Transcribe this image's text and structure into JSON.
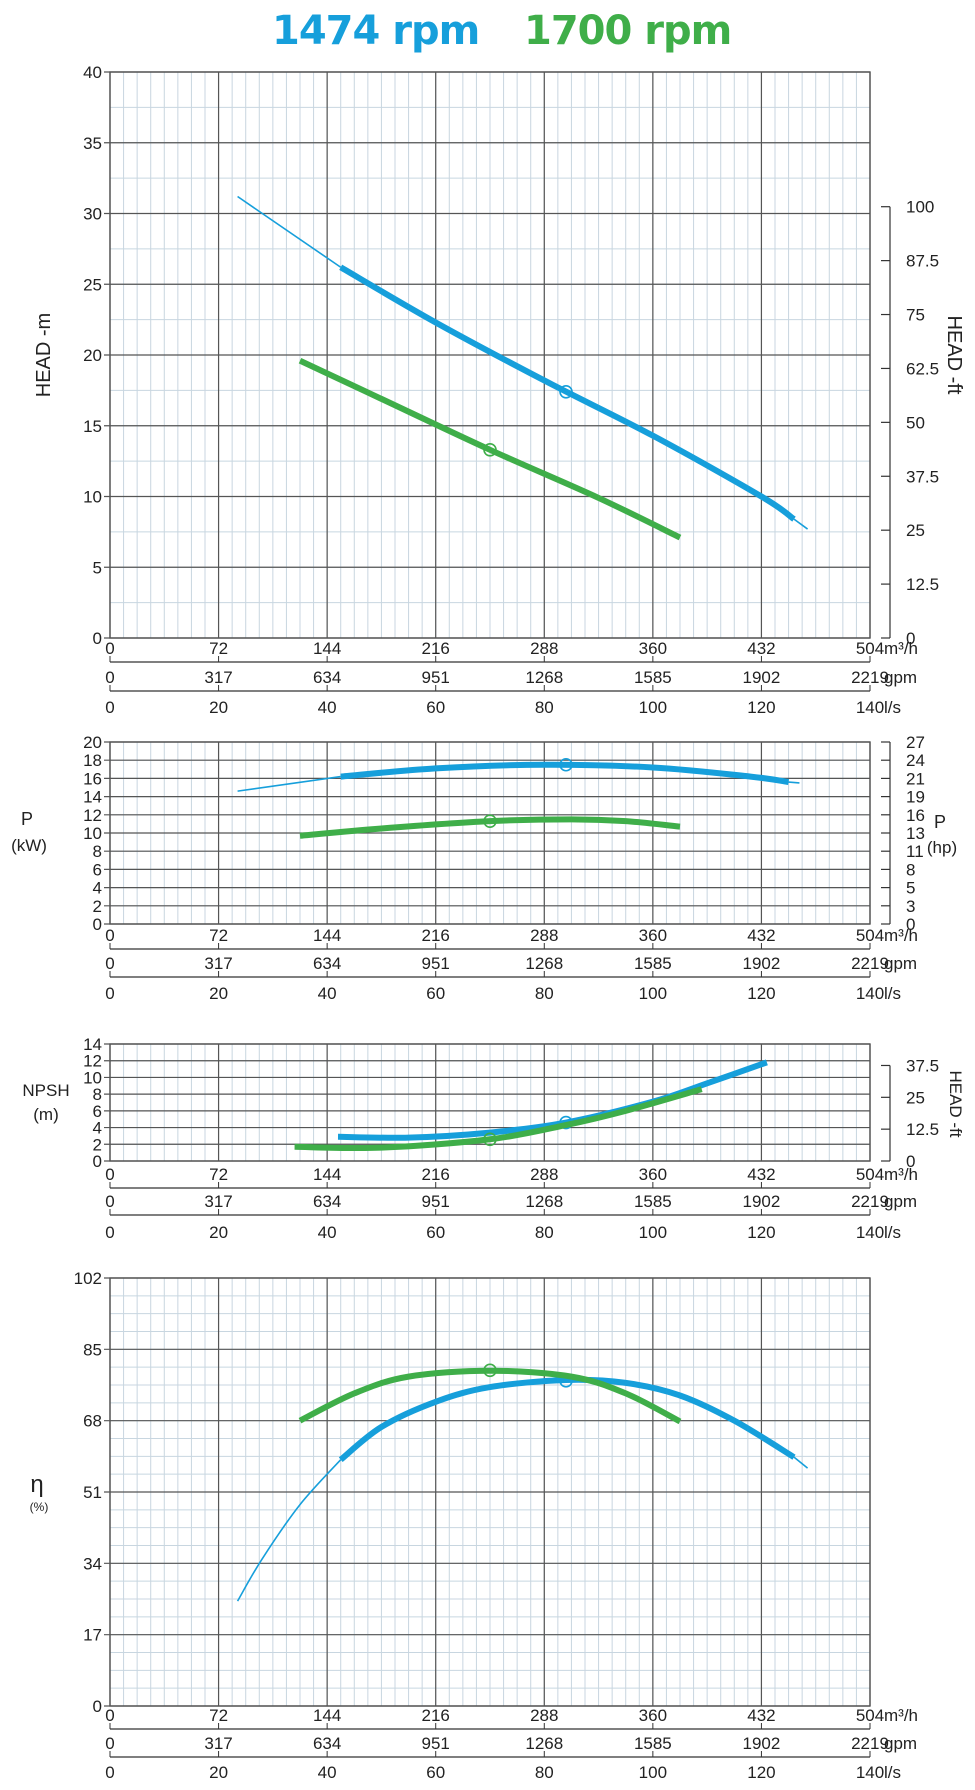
{
  "title": {
    "series_a_label": "1474 rpm",
    "series_b_label": "1700 rpm"
  },
  "colors": {
    "series_a": "#169fdb",
    "series_b": "#3fae49",
    "grid_major": "#555555",
    "grid_minor": "#c8d6e0"
  },
  "flow_axes": {
    "m3h": {
      "unit": "m³/h",
      "ticks": [
        "0",
        "72",
        "144",
        "216",
        "288",
        "360",
        "432",
        "504"
      ]
    },
    "gpm": {
      "unit": "gpm",
      "ticks": [
        "0",
        "317",
        "634",
        "951",
        "1268",
        "1585",
        "1902",
        "2219"
      ]
    },
    "ls": {
      "unit": "l/s",
      "ticks": [
        "0",
        "20",
        "40",
        "60",
        "80",
        "100",
        "120",
        "140"
      ]
    }
  },
  "chart_data": [
    {
      "type": "line",
      "id": "head",
      "ylabel": "HEAD -m",
      "ylabel_right": "HEAD -ft",
      "x_unit": "l/s",
      "xlim": [
        0,
        140
      ],
      "ylim": [
        0,
        40
      ],
      "y_ticks": [
        "0",
        "5",
        "10",
        "15",
        "20",
        "25",
        "30",
        "35",
        "40"
      ],
      "y_ticks_right": [
        "0",
        "12.5",
        "25",
        "37.5",
        "50",
        "62.5",
        "75",
        "87.5",
        "100"
      ],
      "grid": true,
      "series": [
        {
          "name": "1474 rpm",
          "thin": [
            [
              23.5,
              31.2
            ],
            [
              42.5,
              26.2
            ]
          ],
          "bold": [
            [
              42.5,
              26.2
            ],
            [
              60,
              22.3
            ],
            [
              80,
              18.2
            ],
            [
              100,
              14.3
            ],
            [
              120,
              10.0
            ],
            [
              126,
              8.4
            ]
          ],
          "thin_tail": [
            [
              126,
              8.4
            ],
            [
              128.5,
              7.7
            ]
          ],
          "marker": [
            84,
            17.4
          ]
        },
        {
          "name": "1700 rpm",
          "bold": [
            [
              35,
              19.6
            ],
            [
              50,
              16.9
            ],
            [
              70,
              13.3
            ],
            [
              90,
              9.9
            ],
            [
              105,
              7.1
            ]
          ],
          "marker": [
            70,
            13.3
          ]
        }
      ]
    },
    {
      "type": "line",
      "id": "power",
      "ylabel": "P",
      "ylabel_unit": "(kW)",
      "ylabel_right": "P",
      "ylabel_right_unit": "(hp)",
      "x_unit": "l/s",
      "xlim": [
        0,
        140
      ],
      "ylim": [
        0,
        20
      ],
      "y_ticks": [
        "0",
        "2",
        "4",
        "6",
        "8",
        "10",
        "12",
        "14",
        "16",
        "18",
        "20"
      ],
      "y_ticks_right": [
        "0",
        "3",
        "5",
        "8",
        "11",
        "13",
        "16",
        "19",
        "21",
        "24",
        "27"
      ],
      "grid": true,
      "series": [
        {
          "name": "1474 rpm",
          "thin": [
            [
              23.5,
              14.6
            ],
            [
              42.5,
              16.2
            ]
          ],
          "bold": [
            [
              42.5,
              16.2
            ],
            [
              60,
              17.1
            ],
            [
              80,
              17.5
            ],
            [
              100,
              17.2
            ],
            [
              118,
              16.2
            ],
            [
              125,
              15.6
            ]
          ],
          "thin_tail": [
            [
              125,
              15.6
            ],
            [
              127,
              15.5
            ]
          ],
          "marker": [
            84,
            17.5
          ]
        },
        {
          "name": "1700 rpm",
          "bold": [
            [
              35,
              9.7
            ],
            [
              50,
              10.5
            ],
            [
              70,
              11.3
            ],
            [
              85,
              11.5
            ],
            [
              95,
              11.3
            ],
            [
              105,
              10.7
            ]
          ],
          "marker": [
            70,
            11.3
          ]
        }
      ]
    },
    {
      "type": "line",
      "id": "npsh",
      "ylabel": "NPSH",
      "ylabel_unit": "(m)",
      "ylabel_right": "HEAD -ft",
      "x_unit": "l/s",
      "xlim": [
        0,
        140
      ],
      "ylim": [
        0,
        14
      ],
      "y_ticks": [
        "0",
        "2",
        "4",
        "6",
        "8",
        "10",
        "12",
        "14"
      ],
      "y_ticks_right": [
        "0",
        "12.5",
        "25",
        "37.5"
      ],
      "y_ticks_right_ft": [
        0,
        12.5,
        25,
        37.5
      ],
      "grid": true,
      "series": [
        {
          "name": "1474 rpm",
          "bold": [
            [
              42,
              2.9
            ],
            [
              55,
              2.8
            ],
            [
              70,
              3.4
            ],
            [
              84,
              4.6
            ],
            [
              100,
              7.1
            ],
            [
              110,
              9.3
            ],
            [
              121,
              11.8
            ]
          ],
          "marker": [
            84,
            4.6
          ]
        },
        {
          "name": "1700 rpm",
          "bold": [
            [
              34,
              1.7
            ],
            [
              50,
              1.6
            ],
            [
              70,
              2.6
            ],
            [
              84,
              4.3
            ],
            [
              95,
              6.0
            ],
            [
              109,
              8.6
            ]
          ],
          "marker": [
            70,
            2.6
          ]
        }
      ]
    },
    {
      "type": "line",
      "id": "efficiency",
      "ylabel": "η",
      "ylabel_unit": "(%)",
      "x_unit": "l/s",
      "xlim": [
        0,
        140
      ],
      "ylim": [
        0,
        102
      ],
      "y_ticks": [
        "0",
        "17",
        "34",
        "51",
        "68",
        "85",
        "102"
      ],
      "grid": true,
      "series": [
        {
          "name": "1474 rpm",
          "thin": [
            [
              23.5,
              25
            ],
            [
              28,
              35
            ],
            [
              35,
              48
            ],
            [
              42.5,
              58.7
            ]
          ],
          "bold": [
            [
              42.5,
              58.7
            ],
            [
              50,
              66.5
            ],
            [
              60,
              72.5
            ],
            [
              70,
              76
            ],
            [
              84,
              77.7
            ],
            [
              95,
              77
            ],
            [
              105,
              74
            ],
            [
              115,
              68
            ],
            [
              126,
              59.3
            ]
          ],
          "thin_tail": [
            [
              126,
              59.3
            ],
            [
              128.5,
              56.7
            ]
          ],
          "marker": [
            84,
            77.5
          ]
        },
        {
          "name": "1700 rpm",
          "bold": [
            [
              35,
              68
            ],
            [
              45,
              74.5
            ],
            [
              55,
              78.5
            ],
            [
              70,
              79.9
            ],
            [
              85,
              78.5
            ],
            [
              95,
              74.5
            ],
            [
              105,
              67.8
            ]
          ],
          "marker": [
            70,
            80
          ]
        }
      ]
    }
  ]
}
